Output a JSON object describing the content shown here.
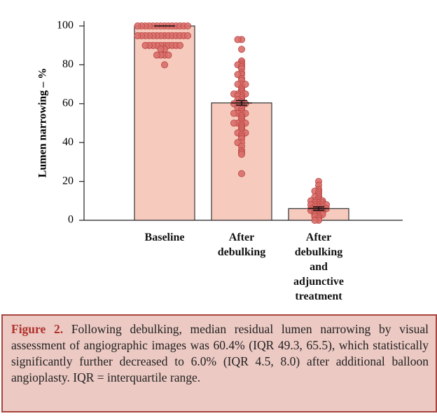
{
  "chart_data": {
    "type": "bar",
    "y_label": "Lumen narrowing – %",
    "categories": [
      "Baseline",
      "After debulking",
      "After debulking and adjunctive treatment"
    ],
    "values": [
      100,
      60.4,
      6.0
    ],
    "errors": [
      0,
      1.2,
      0.9
    ],
    "points": [
      [
        100,
        100,
        100,
        100,
        100,
        100,
        100,
        100,
        100,
        100,
        100,
        100,
        100,
        100,
        95,
        95,
        95,
        95,
        95,
        95,
        95,
        95,
        95,
        95,
        95,
        95,
        95,
        95,
        90,
        90,
        90,
        90,
        90,
        90,
        90,
        90,
        90,
        90,
        88,
        88,
        85,
        85,
        85,
        85,
        80
      ],
      [
        93,
        93,
        88,
        82,
        81,
        80,
        80,
        79,
        78,
        76,
        75,
        75,
        73,
        72,
        70,
        70,
        70,
        68,
        67,
        66,
        65,
        65,
        65,
        65,
        64,
        64,
        63,
        62,
        62,
        61,
        60,
        60,
        60,
        60,
        59,
        58,
        58,
        57,
        56,
        55,
        55,
        55,
        55,
        54,
        53,
        52,
        51,
        50,
        50,
        50,
        50,
        49,
        48,
        47,
        46,
        45,
        45,
        45,
        44,
        43,
        42,
        40,
        40,
        38,
        36,
        35,
        34,
        24
      ],
      [
        20,
        18,
        16,
        15,
        15,
        14,
        13,
        12,
        12,
        11,
        10,
        10,
        10,
        10,
        9,
        9,
        9,
        8,
        8,
        8,
        8,
        8,
        7,
        7,
        7,
        6,
        6,
        6,
        6,
        6,
        5,
        5,
        5,
        5,
        4,
        4,
        4,
        3,
        3,
        3,
        2,
        2,
        1,
        0,
        0
      ]
    ],
    "bar_color": "#f6cbbd",
    "point_color": "#d96f6b",
    "ylim": [
      0,
      100
    ],
    "yticks": [
      0,
      20,
      40,
      60,
      80,
      100
    ]
  },
  "caption": {
    "label": "Figure 2.",
    "text": "Following debulking, median residual lumen narrowing by visual assessment of angiographic images was 60.4% (IQR 49.3, 65.5), which statistically significantly further decreased to 6.0% (IQR 4.5, 8.0) after additional balloon angioplasty. IQR = interquartile range."
  }
}
